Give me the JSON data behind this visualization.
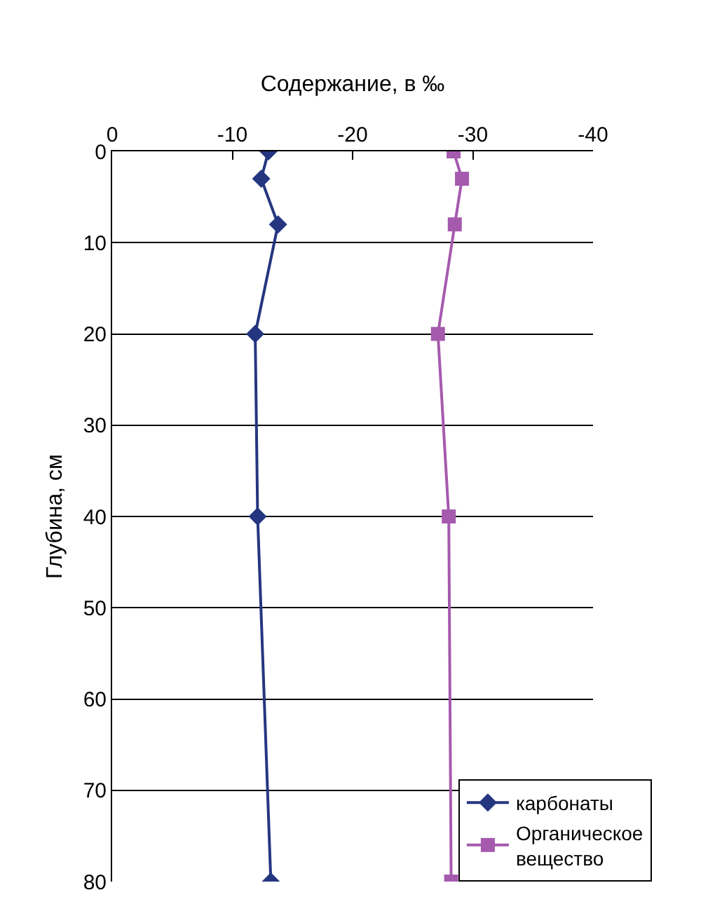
{
  "chart_data": {
    "type": "line",
    "xlabel": "Содержание, в ‰",
    "ylabel": "Глубина, см",
    "xlim": [
      0,
      -40
    ],
    "xticks": [
      0,
      -10,
      -20,
      -30,
      -40
    ],
    "ylim": [
      80,
      0
    ],
    "yticks": [
      0,
      10,
      20,
      30,
      40,
      50,
      60,
      70,
      80
    ],
    "grid": "y",
    "legend": "bottom right",
    "line_style": "solid",
    "series": [
      {
        "name": "карбонаты",
        "color": "#253680",
        "marker": "diamond",
        "x": [
          -13.0,
          -12.4,
          -13.8,
          -11.9,
          -12.1,
          -13.2
        ],
        "values": [
          0,
          3,
          8,
          20,
          40,
          80
        ]
      },
      {
        "name": "Органическое вещество",
        "color": "#a55aae",
        "marker": "square",
        "x": [
          -28.4,
          -29.1,
          -28.5,
          -27.1,
          -28.0,
          -28.2
        ],
        "values": [
          0,
          3,
          8,
          20,
          40,
          80
        ]
      }
    ]
  }
}
